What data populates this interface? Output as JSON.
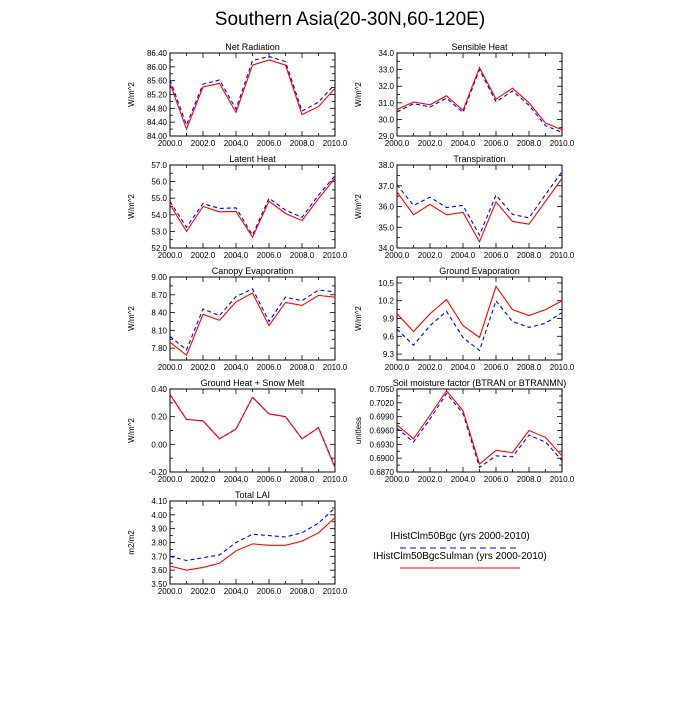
{
  "figure": {
    "title": "Southern Asia(20-30N,60-120E)"
  },
  "colors": {
    "series1": "#0000ff",
    "series2": "#ff0000"
  },
  "legend": {
    "entries": [
      {
        "label": "IHistClm50Bgc (yrs 2000-2010)",
        "style": "dashed",
        "color": "#0000ff"
      },
      {
        "label": "IHistClm50BgcSulman (yrs 2000-2010)",
        "style": "solid",
        "color": "#ff0000"
      }
    ]
  },
  "chart_data": [
    {
      "type": "line",
      "title": "Net Radiation",
      "ylabel": "W/m^2",
      "x": [
        2000,
        2001,
        2002,
        2003,
        2004,
        2005,
        2006,
        2007,
        2008,
        2009,
        2010
      ],
      "xticks": [
        "2000.0",
        "2002.0",
        "2004.0",
        "2006.0",
        "2008.0",
        "2010.0"
      ],
      "ylim": [
        84.0,
        86.4
      ],
      "yticks": [
        "84.00",
        "84.40",
        "84.80",
        "85.20",
        "85.60",
        "86.00",
        "86.40"
      ],
      "series": [
        {
          "style": "dashed",
          "color": "#0000ff",
          "values": [
            85.62,
            84.32,
            85.5,
            85.62,
            84.78,
            86.18,
            86.3,
            86.15,
            84.72,
            84.98,
            85.5
          ]
        },
        {
          "style": "solid",
          "color": "#ff0000",
          "values": [
            85.52,
            84.2,
            85.42,
            85.52,
            84.68,
            86.05,
            86.2,
            86.05,
            84.62,
            84.85,
            85.38
          ]
        }
      ]
    },
    {
      "type": "line",
      "title": "Sensible Heat",
      "ylabel": "W/m^2",
      "x": [
        2000,
        2001,
        2002,
        2003,
        2004,
        2005,
        2006,
        2007,
        2008,
        2009,
        2010
      ],
      "xticks": [
        "2000.0",
        "2002.0",
        "2004.0",
        "2006.0",
        "2008.0",
        "2010.0"
      ],
      "ylim": [
        29.0,
        34.0
      ],
      "yticks": [
        "29.0",
        "30.0",
        "31.0",
        "32.0",
        "33.0",
        "34.0"
      ],
      "series": [
        {
          "style": "dashed",
          "color": "#0000ff",
          "values": [
            30.45,
            30.95,
            30.75,
            31.28,
            30.42,
            33.0,
            31.05,
            31.72,
            30.85,
            29.62,
            29.22
          ]
        },
        {
          "style": "solid",
          "color": "#ff0000",
          "values": [
            30.6,
            31.05,
            30.88,
            31.42,
            30.55,
            33.12,
            31.22,
            31.88,
            31.0,
            29.78,
            29.38
          ]
        }
      ]
    },
    {
      "type": "line",
      "title": "Latent Heat",
      "ylabel": "W/m^2",
      "x": [
        2000,
        2001,
        2002,
        2003,
        2004,
        2005,
        2006,
        2007,
        2008,
        2009,
        2010
      ],
      "xticks": [
        "2000.0",
        "2002.0",
        "2004.0",
        "2006.0",
        "2008.0",
        "2010.0"
      ],
      "ylim": [
        52.0,
        57.0
      ],
      "yticks": [
        "52.0",
        "53.0",
        "54.0",
        "55.0",
        "56.0",
        "57.0"
      ],
      "series": [
        {
          "style": "dashed",
          "color": "#0000ff",
          "values": [
            54.8,
            53.25,
            54.68,
            54.38,
            54.42,
            52.78,
            55.0,
            54.28,
            53.85,
            55.18,
            56.35
          ]
        },
        {
          "style": "solid",
          "color": "#ff0000",
          "values": [
            54.62,
            53.0,
            54.5,
            54.18,
            54.2,
            52.65,
            54.82,
            54.08,
            53.65,
            54.98,
            56.2
          ]
        }
      ]
    },
    {
      "type": "line",
      "title": "Transpiration",
      "ylabel": "W/m^2",
      "x": [
        2000,
        2001,
        2002,
        2003,
        2004,
        2005,
        2006,
        2007,
        2008,
        2009,
        2010
      ],
      "xticks": [
        "2000.0",
        "2002.0",
        "2004.0",
        "2006.0",
        "2008.0",
        "2010.0"
      ],
      "ylim": [
        34.0,
        38.0
      ],
      "yticks": [
        "34.0",
        "35.0",
        "36.0",
        "37.0",
        "38.0"
      ],
      "series": [
        {
          "style": "dashed",
          "color": "#0000ff",
          "values": [
            37.05,
            36.05,
            36.45,
            35.95,
            36.05,
            34.62,
            36.55,
            35.62,
            35.45,
            36.58,
            37.68
          ]
        },
        {
          "style": "solid",
          "color": "#ff0000",
          "values": [
            36.7,
            35.6,
            36.1,
            35.6,
            35.72,
            34.3,
            36.22,
            35.28,
            35.15,
            36.25,
            37.35
          ]
        }
      ]
    },
    {
      "type": "line",
      "title": "Canopy Evaporation",
      "ylabel": "W/m^2",
      "x": [
        2000,
        2001,
        2002,
        2003,
        2004,
        2005,
        2006,
        2007,
        2008,
        2009,
        2010
      ],
      "xticks": [
        "2000.0",
        "2002.0",
        "2004.0",
        "2006.0",
        "2008.0",
        "2010.0"
      ],
      "ylim": [
        7.6,
        9.0
      ],
      "yticks": [
        "7.80",
        "8.10",
        "8.40",
        "8.70",
        "9.00"
      ],
      "series": [
        {
          "style": "dashed",
          "color": "#0000ff",
          "values": [
            8.0,
            7.77,
            8.46,
            8.35,
            8.67,
            8.8,
            8.25,
            8.66,
            8.6,
            8.78,
            8.75
          ]
        },
        {
          "style": "solid",
          "color": "#ff0000",
          "values": [
            7.9,
            7.68,
            8.37,
            8.27,
            8.58,
            8.73,
            8.18,
            8.57,
            8.52,
            8.69,
            8.66
          ]
        }
      ]
    },
    {
      "type": "line",
      "title": "Ground Evaporation",
      "ylabel": "W/m^2",
      "x": [
        2000,
        2001,
        2002,
        2003,
        2004,
        2005,
        2006,
        2007,
        2008,
        2009,
        2010
      ],
      "xticks": [
        "2000.0",
        "2002.0",
        "2004.0",
        "2006.0",
        "2008.0",
        "2010.0"
      ],
      "ylim": [
        9.2,
        10.6
      ],
      "yticks": [
        "9.3",
        "9.6",
        "9.9",
        "10.2",
        "10.5"
      ],
      "series": [
        {
          "style": "dashed",
          "color": "#0000ff",
          "values": [
            9.72,
            9.45,
            9.78,
            10.02,
            9.58,
            9.36,
            10.2,
            9.85,
            9.75,
            9.82,
            10.0
          ]
        },
        {
          "style": "solid",
          "color": "#ff0000",
          "values": [
            9.98,
            9.68,
            9.98,
            10.22,
            9.78,
            9.58,
            10.44,
            10.05,
            9.95,
            10.05,
            10.2
          ]
        }
      ]
    },
    {
      "type": "line",
      "title": "Ground Heat + Snow Melt",
      "ylabel": "W/m^2",
      "x": [
        2000,
        2001,
        2002,
        2003,
        2004,
        2005,
        2006,
        2007,
        2008,
        2009,
        2010
      ],
      "xticks": [
        "2000.0",
        "2002.0",
        "2004.0",
        "2006.0",
        "2008.0",
        "2010.0"
      ],
      "ylim": [
        -0.2,
        0.4
      ],
      "yticks": [
        "-0.20",
        "0.00",
        "0.20",
        "0.40"
      ],
      "series": [
        {
          "style": "dashed",
          "color": "#0000ff",
          "values": [
            0.36,
            0.18,
            0.17,
            0.04,
            0.11,
            0.34,
            0.22,
            0.2,
            0.04,
            0.12,
            -0.16
          ]
        },
        {
          "style": "solid",
          "color": "#ff0000",
          "values": [
            0.36,
            0.18,
            0.17,
            0.04,
            0.11,
            0.34,
            0.22,
            0.2,
            0.04,
            0.12,
            -0.17
          ]
        }
      ]
    },
    {
      "type": "line",
      "title": "Soil moisture factor (BTRAN or BTRANMN)",
      "ylabel": "unitless",
      "x": [
        2000,
        2001,
        2002,
        2003,
        2004,
        2005,
        2006,
        2007,
        2008,
        2009,
        2010
      ],
      "xticks": [
        "2000.0",
        "2002.0",
        "2004.0",
        "2006.0",
        "2008.0",
        "2010.0"
      ],
      "ylim": [
        0.687,
        0.705
      ],
      "yticks": [
        "0.6870",
        "0.6900",
        "0.6930",
        "0.6960",
        "0.6990",
        "0.7020",
        "0.7050"
      ],
      "series": [
        {
          "style": "dashed",
          "color": "#0000ff",
          "values": [
            0.6965,
            0.6935,
            0.6985,
            0.704,
            0.6997,
            0.688,
            0.6905,
            0.6903,
            0.695,
            0.6935,
            0.6895
          ]
        },
        {
          "style": "solid",
          "color": "#ff0000",
          "values": [
            0.6972,
            0.6942,
            0.6993,
            0.7046,
            0.7003,
            0.6887,
            0.6917,
            0.6912,
            0.696,
            0.6945,
            0.6905
          ]
        }
      ]
    },
    {
      "type": "line",
      "title": "Total LAI",
      "ylabel": "m2/m2",
      "x": [
        2000,
        2001,
        2002,
        2003,
        2004,
        2005,
        2006,
        2007,
        2008,
        2009,
        2010
      ],
      "xticks": [
        "2000.0",
        "2002.0",
        "2004.0",
        "2006.0",
        "2008.0",
        "2010.0"
      ],
      "ylim": [
        3.5,
        4.1
      ],
      "yticks": [
        "3.50",
        "3.60",
        "3.70",
        "3.80",
        "3.90",
        "4.00",
        "4.10"
      ],
      "series": [
        {
          "style": "dashed",
          "color": "#0000ff",
          "values": [
            3.7,
            3.67,
            3.69,
            3.71,
            3.8,
            3.86,
            3.85,
            3.84,
            3.87,
            3.94,
            4.05
          ]
        },
        {
          "style": "solid",
          "color": "#ff0000",
          "values": [
            3.63,
            3.6,
            3.62,
            3.65,
            3.74,
            3.79,
            3.78,
            3.78,
            3.81,
            3.87,
            3.98
          ]
        }
      ]
    }
  ]
}
